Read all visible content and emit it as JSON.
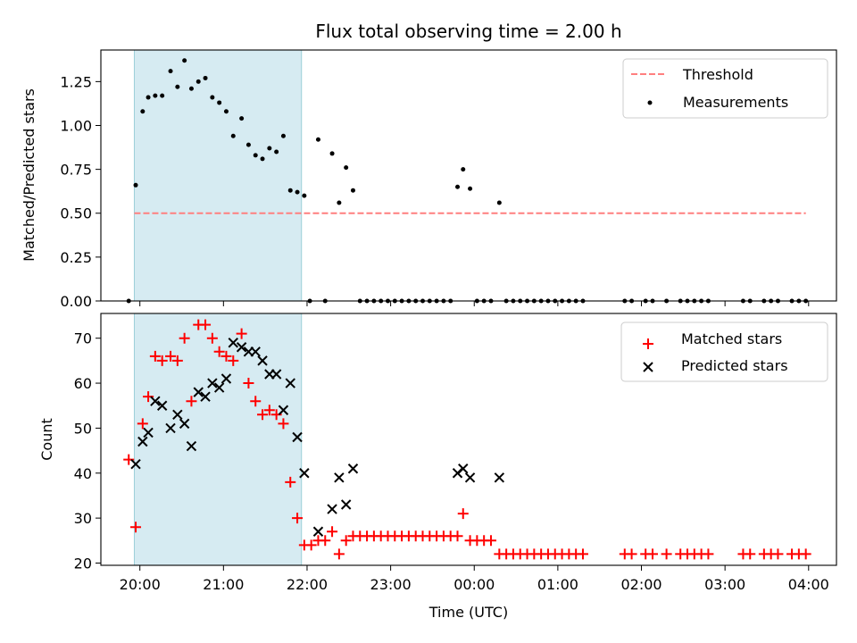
{
  "chart_data": [
    {
      "type": "scatter",
      "title": "Flux total observing time = 2.00 h",
      "ylabel": "Matched/Predicted stars",
      "xlabel": "",
      "xlim": [
        "19:32",
        "04:20"
      ],
      "ylim": [
        0,
        1.43
      ],
      "x_ticks": [
        "20:00",
        "21:00",
        "22:00",
        "23:00",
        "00:00",
        "01:00",
        "02:00",
        "03:00",
        "04:00"
      ],
      "y_ticks": [
        "0.00",
        "0.25",
        "0.50",
        "0.75",
        "1.00",
        "1.25"
      ],
      "y_tick_values": [
        0,
        0.25,
        0.5,
        0.75,
        1.0,
        1.25
      ],
      "shaded_span": [
        "19:56",
        "21:56"
      ],
      "legend": "top-right",
      "legend_labels": [
        "Threshold",
        "Measurements"
      ],
      "threshold": {
        "name": "Threshold",
        "y": 0.5,
        "x_range": [
          "19:56",
          "03:58"
        ],
        "color": "#ff7f7f",
        "style": "dashed"
      },
      "series": [
        {
          "name": "Measurements",
          "color": "#000000",
          "points": [
            [
              "19:52",
              0.0
            ],
            [
              "19:57",
              0.66
            ],
            [
              "20:02",
              1.08
            ],
            [
              "20:06",
              1.16
            ],
            [
              "20:11",
              1.17
            ],
            [
              "20:16",
              1.17
            ],
            [
              "20:22",
              1.31
            ],
            [
              "20:27",
              1.22
            ],
            [
              "20:32",
              1.37
            ],
            [
              "20:37",
              1.21
            ],
            [
              "20:42",
              1.25
            ],
            [
              "20:47",
              1.27
            ],
            [
              "20:52",
              1.16
            ],
            [
              "20:57",
              1.13
            ],
            [
              "21:02",
              1.08
            ],
            [
              "21:07",
              0.94
            ],
            [
              "21:13",
              1.04
            ],
            [
              "21:18",
              0.89
            ],
            [
              "21:23",
              0.83
            ],
            [
              "21:28",
              0.81
            ],
            [
              "21:33",
              0.87
            ],
            [
              "21:38",
              0.85
            ],
            [
              "21:43",
              0.94
            ],
            [
              "21:48",
              0.63
            ],
            [
              "21:53",
              0.62
            ],
            [
              "21:58",
              0.6
            ],
            [
              "22:02",
              0.0
            ],
            [
              "22:08",
              0.92
            ],
            [
              "22:13",
              0.0
            ],
            [
              "22:18",
              0.84
            ],
            [
              "22:23",
              0.56
            ],
            [
              "22:28",
              0.76
            ],
            [
              "22:33",
              0.63
            ],
            [
              "22:38",
              0.0
            ],
            [
              "22:43",
              0.0
            ],
            [
              "22:48",
              0.0
            ],
            [
              "22:53",
              0.0
            ],
            [
              "22:58",
              0.0
            ],
            [
              "23:03",
              0.0
            ],
            [
              "23:08",
              0.0
            ],
            [
              "23:13",
              0.0
            ],
            [
              "23:18",
              0.0
            ],
            [
              "23:23",
              0.0
            ],
            [
              "23:28",
              0.0
            ],
            [
              "23:33",
              0.0
            ],
            [
              "23:38",
              0.0
            ],
            [
              "23:43",
              0.0
            ],
            [
              "23:48",
              0.65
            ],
            [
              "23:52",
              0.75
            ],
            [
              "23:57",
              0.64
            ],
            [
              "00:02",
              0.0
            ],
            [
              "00:07",
              0.0
            ],
            [
              "00:12",
              0.0
            ],
            [
              "00:18",
              0.56
            ],
            [
              "00:23",
              0.0
            ],
            [
              "00:28",
              0.0
            ],
            [
              "00:33",
              0.0
            ],
            [
              "00:38",
              0.0
            ],
            [
              "00:43",
              0.0
            ],
            [
              "00:48",
              0.0
            ],
            [
              "00:53",
              0.0
            ],
            [
              "00:58",
              0.0
            ],
            [
              "01:03",
              0.0
            ],
            [
              "01:08",
              0.0
            ],
            [
              "01:13",
              0.0
            ],
            [
              "01:18",
              0.0
            ],
            [
              "01:48",
              0.0
            ],
            [
              "01:53",
              0.0
            ],
            [
              "02:03",
              0.0
            ],
            [
              "02:08",
              0.0
            ],
            [
              "02:18",
              0.0
            ],
            [
              "02:28",
              0.0
            ],
            [
              "02:33",
              0.0
            ],
            [
              "02:38",
              0.0
            ],
            [
              "02:43",
              0.0
            ],
            [
              "02:48",
              0.0
            ],
            [
              "03:13",
              0.0
            ],
            [
              "03:18",
              0.0
            ],
            [
              "03:28",
              0.0
            ],
            [
              "03:33",
              0.0
            ],
            [
              "03:38",
              0.0
            ],
            [
              "03:48",
              0.0
            ],
            [
              "03:53",
              0.0
            ],
            [
              "03:58",
              0.0
            ]
          ]
        }
      ]
    },
    {
      "type": "scatter",
      "title": "",
      "ylabel": "Count",
      "xlabel": "Time (UTC)",
      "xlim": [
        "19:32",
        "04:20"
      ],
      "ylim": [
        19.5,
        75.5
      ],
      "x_ticks": [
        "20:00",
        "21:00",
        "22:00",
        "23:00",
        "00:00",
        "01:00",
        "02:00",
        "03:00",
        "04:00"
      ],
      "y_ticks": [
        "20",
        "30",
        "40",
        "50",
        "60",
        "70"
      ],
      "y_tick_values": [
        20,
        30,
        40,
        50,
        60,
        70
      ],
      "shaded_span": [
        "19:56",
        "21:56"
      ],
      "legend": "top-right",
      "legend_labels": [
        "Matched stars",
        "Predicted stars"
      ],
      "series": [
        {
          "name": "Matched stars",
          "marker": "plus",
          "color": "#ff0000",
          "points": [
            [
              "19:52",
              43
            ],
            [
              "19:57",
              28
            ],
            [
              "20:02",
              51
            ],
            [
              "20:06",
              57
            ],
            [
              "20:11",
              66
            ],
            [
              "20:16",
              65
            ],
            [
              "20:22",
              66
            ],
            [
              "20:27",
              65
            ],
            [
              "20:32",
              70
            ],
            [
              "20:37",
              56
            ],
            [
              "20:42",
              73
            ],
            [
              "20:47",
              73
            ],
            [
              "20:52",
              70
            ],
            [
              "20:57",
              67
            ],
            [
              "21:02",
              66
            ],
            [
              "21:07",
              65
            ],
            [
              "21:13",
              71
            ],
            [
              "21:18",
              60
            ],
            [
              "21:23",
              56
            ],
            [
              "21:28",
              53
            ],
            [
              "21:33",
              54
            ],
            [
              "21:38",
              53
            ],
            [
              "21:43",
              51
            ],
            [
              "21:48",
              38
            ],
            [
              "21:53",
              30
            ],
            [
              "21:58",
              24
            ],
            [
              "22:03",
              24
            ],
            [
              "22:08",
              25
            ],
            [
              "22:13",
              25
            ],
            [
              "22:18",
              27
            ],
            [
              "22:23",
              22
            ],
            [
              "22:28",
              25
            ],
            [
              "22:33",
              26
            ],
            [
              "22:38",
              26
            ],
            [
              "22:43",
              26
            ],
            [
              "22:48",
              26
            ],
            [
              "22:53",
              26
            ],
            [
              "22:58",
              26
            ],
            [
              "23:03",
              26
            ],
            [
              "23:08",
              26
            ],
            [
              "23:13",
              26
            ],
            [
              "23:18",
              26
            ],
            [
              "23:23",
              26
            ],
            [
              "23:28",
              26
            ],
            [
              "23:33",
              26
            ],
            [
              "23:38",
              26
            ],
            [
              "23:43",
              26
            ],
            [
              "23:48",
              26
            ],
            [
              "23:52",
              31
            ],
            [
              "23:57",
              25
            ],
            [
              "00:02",
              25
            ],
            [
              "00:07",
              25
            ],
            [
              "00:12",
              25
            ],
            [
              "00:18",
              22
            ],
            [
              "00:23",
              22
            ],
            [
              "00:28",
              22
            ],
            [
              "00:33",
              22
            ],
            [
              "00:38",
              22
            ],
            [
              "00:43",
              22
            ],
            [
              "00:48",
              22
            ],
            [
              "00:53",
              22
            ],
            [
              "00:58",
              22
            ],
            [
              "01:03",
              22
            ],
            [
              "01:08",
              22
            ],
            [
              "01:13",
              22
            ],
            [
              "01:18",
              22
            ],
            [
              "01:48",
              22
            ],
            [
              "01:53",
              22
            ],
            [
              "02:03",
              22
            ],
            [
              "02:08",
              22
            ],
            [
              "02:18",
              22
            ],
            [
              "02:28",
              22
            ],
            [
              "02:33",
              22
            ],
            [
              "02:38",
              22
            ],
            [
              "02:43",
              22
            ],
            [
              "02:48",
              22
            ],
            [
              "03:13",
              22
            ],
            [
              "03:18",
              22
            ],
            [
              "03:28",
              22
            ],
            [
              "03:33",
              22
            ],
            [
              "03:38",
              22
            ],
            [
              "03:48",
              22
            ],
            [
              "03:53",
              22
            ],
            [
              "03:58",
              22
            ]
          ]
        },
        {
          "name": "Predicted stars",
          "marker": "x",
          "color": "#000000",
          "points": [
            [
              "19:57",
              42
            ],
            [
              "20:02",
              47
            ],
            [
              "20:06",
              49
            ],
            [
              "20:11",
              56
            ],
            [
              "20:16",
              55
            ],
            [
              "20:22",
              50
            ],
            [
              "20:27",
              53
            ],
            [
              "20:32",
              51
            ],
            [
              "20:37",
              46
            ],
            [
              "20:42",
              58
            ],
            [
              "20:47",
              57
            ],
            [
              "20:52",
              60
            ],
            [
              "20:57",
              59
            ],
            [
              "21:02",
              61
            ],
            [
              "21:07",
              69
            ],
            [
              "21:13",
              68
            ],
            [
              "21:18",
              67
            ],
            [
              "21:23",
              67
            ],
            [
              "21:28",
              65
            ],
            [
              "21:33",
              62
            ],
            [
              "21:38",
              62
            ],
            [
              "21:43",
              54
            ],
            [
              "21:48",
              60
            ],
            [
              "21:53",
              48
            ],
            [
              "21:58",
              40
            ],
            [
              "22:08",
              27
            ],
            [
              "22:18",
              32
            ],
            [
              "22:23",
              39
            ],
            [
              "22:28",
              33
            ],
            [
              "22:33",
              41
            ],
            [
              "23:48",
              40
            ],
            [
              "23:52",
              41
            ],
            [
              "23:57",
              39
            ],
            [
              "00:18",
              39
            ]
          ]
        }
      ]
    }
  ]
}
